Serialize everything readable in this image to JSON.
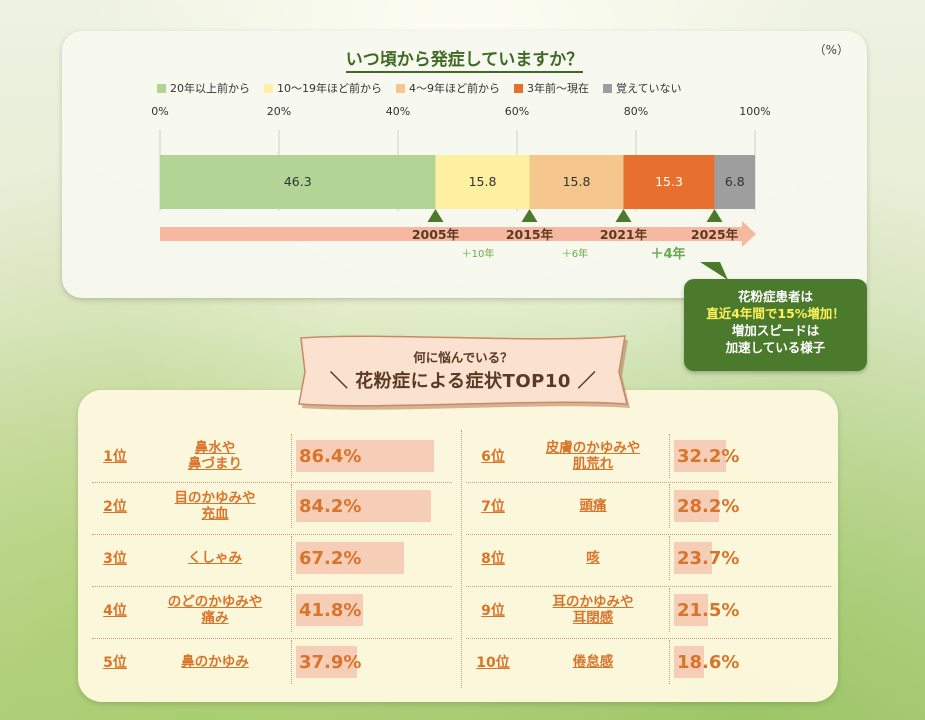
{
  "colors": {
    "c1": "#b2d596",
    "c2": "#fdf0a0",
    "c3": "#f5c78e",
    "c4": "#e8702e",
    "c5": "#9e9e9e",
    "accent_green": "#4b7a2c",
    "accent_orange": "#d9742b"
  },
  "chart_data": [
    {
      "type": "bar",
      "orientation": "horizontal-stacked",
      "title": "いつ頃から発症していますか？",
      "unit": "（%）",
      "xlim": [
        0,
        100
      ],
      "x_ticks": [
        "0%",
        "20%",
        "40%",
        "60%",
        "80%",
        "100%"
      ],
      "series": [
        {
          "name": "20年以上前から",
          "value": 46.3,
          "label": "46.3",
          "color": "#b2d596"
        },
        {
          "name": "10～19年ほど前から",
          "value": 15.8,
          "label": "15.8",
          "color": "#fdf0a0"
        },
        {
          "name": "4～9年ほど前から",
          "value": 15.8,
          "label": "15.8",
          "color": "#f5c78e"
        },
        {
          "name": "3年前～現在",
          "value": 15.3,
          "label": "15.3",
          "color": "#e8702e"
        },
        {
          "name": "覚えていない",
          "value": 6.8,
          "label": "6.8",
          "color": "#9e9e9e"
        }
      ],
      "timeline": {
        "markers": [
          {
            "year": "2005年",
            "at": 46.3
          },
          {
            "year": "2015年",
            "at": 62.1
          },
          {
            "year": "2021年",
            "at": 77.9
          },
          {
            "year": "2025年",
            "at": 93.2
          }
        ],
        "increments": [
          "＋10年",
          "＋6年",
          "＋4年"
        ]
      }
    },
    {
      "type": "table",
      "title": "花粉症による症状TOP10",
      "rows": [
        {
          "rank": "1位",
          "name": "鼻水や\n鼻づまり",
          "value": 86.4,
          "label": "86.4%"
        },
        {
          "rank": "2位",
          "name": "目のかゆみや\n充血",
          "value": 84.2,
          "label": "84.2%"
        },
        {
          "rank": "3位",
          "name": "くしゃみ",
          "value": 67.2,
          "label": "67.2%"
        },
        {
          "rank": "4位",
          "name": "のどのかゆみや\n痛み",
          "value": 41.8,
          "label": "41.8%"
        },
        {
          "rank": "5位",
          "name": "鼻のかゆみ",
          "value": 37.9,
          "label": "37.9%"
        },
        {
          "rank": "6位",
          "name": "皮膚のかゆみや\n肌荒れ",
          "value": 32.2,
          "label": "32.2%"
        },
        {
          "rank": "7位",
          "name": "頭痛",
          "value": 28.2,
          "label": "28.2%"
        },
        {
          "rank": "8位",
          "name": "咳",
          "value": 23.7,
          "label": "23.7%"
        },
        {
          "rank": "9位",
          "name": "耳のかゆみや\n耳閉感",
          "value": 21.5,
          "label": "21.5%"
        },
        {
          "rank": "10位",
          "name": "倦怠感",
          "value": 18.6,
          "label": "18.6%"
        }
      ]
    }
  ],
  "callout": {
    "line1": "花粉症患者は",
    "line2": "直近4年間で15%増加！",
    "line3": "増加スピードは",
    "line4": "加速している様子"
  },
  "banner": {
    "sub": "何に悩んでいる？",
    "main": "＼ 花粉症による症状TOP10 ／"
  }
}
